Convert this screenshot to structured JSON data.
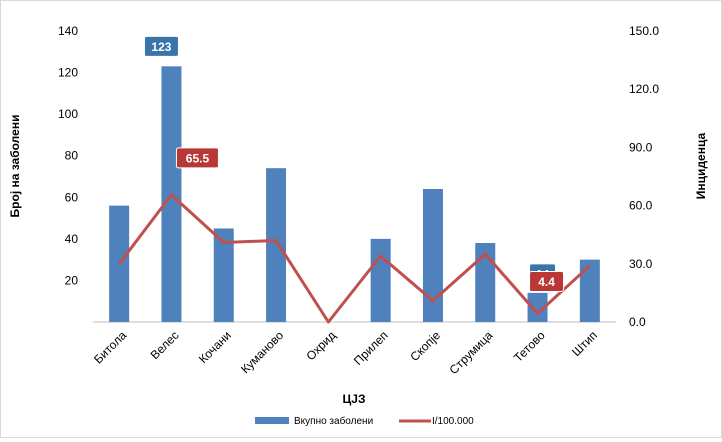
{
  "colors": {
    "bars": "#4f81bd",
    "line": "#c0504d",
    "axis_line": "#bfbfbf",
    "text": "#000000",
    "callout_blue": "#3b73ad",
    "callout_red": "#b93835"
  },
  "chart_data": {
    "type": "bar",
    "title": "",
    "xlabel": "ЦЈЗ",
    "ylabel": "Број на заболени",
    "y2label": "Инциденца",
    "categories": [
      "Битола",
      "Велес",
      "Кочани",
      "Куманово",
      "Охрид",
      "Прилеп",
      "Скопје",
      "Струмица",
      "Тетово",
      "Штип"
    ],
    "series": [
      {
        "name": "Вкупно заболени",
        "type": "bar",
        "axis": "left",
        "values": [
          56,
          123,
          45,
          74,
          0,
          40,
          64,
          38,
          14,
          30
        ]
      },
      {
        "name": "I/100.000",
        "type": "line",
        "axis": "right",
        "values": [
          30.0,
          65.5,
          41.0,
          42.0,
          0.0,
          34.0,
          11.0,
          35.0,
          4.4,
          29.0
        ]
      }
    ],
    "ylim": [
      0,
      140
    ],
    "yticks": [
      "20",
      "40",
      "60",
      "80",
      "100",
      "120",
      "140"
    ],
    "y2lim": [
      0,
      150
    ],
    "y2ticks": [
      "0.0",
      "30.0",
      "60.0",
      "90.0",
      "120.0",
      "150.0"
    ],
    "grid": false,
    "legend_position": "bottom",
    "callouts": [
      {
        "text": "123",
        "style": "blue"
      },
      {
        "text": "65.5",
        "style": "red"
      },
      {
        "text": "14",
        "style": "blue"
      },
      {
        "text": "4.4",
        "style": "red"
      }
    ]
  }
}
